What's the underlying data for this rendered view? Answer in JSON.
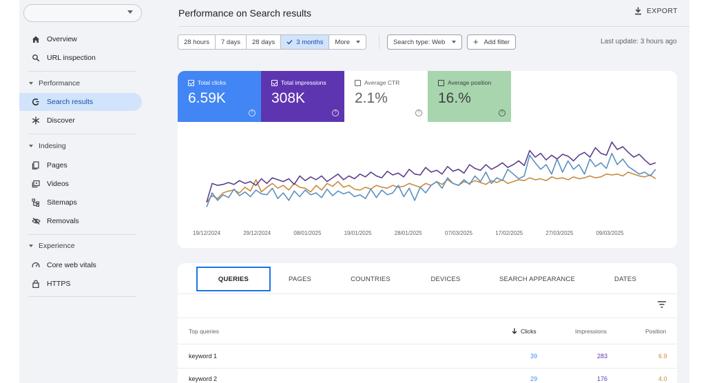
{
  "colors": {
    "clicks": "#4285f4",
    "impressions": "#5e35b1",
    "ctr": "#ffffff",
    "position": "#a8d5ad",
    "position_line": "#c88a3a",
    "clicks_line": "#5a8fc0",
    "impressions_line": "#5b3d8a"
  },
  "sidebar": {
    "property_select": "",
    "items": [
      {
        "label": "Overview",
        "icon": "home-icon"
      },
      {
        "label": "URL inspection",
        "icon": "search-icon"
      }
    ],
    "sections": [
      {
        "label": "Performance",
        "items": [
          {
            "label": "Search results",
            "icon": "google-g-icon",
            "active": true
          },
          {
            "label": "Discover",
            "icon": "asterisk-icon"
          }
        ]
      },
      {
        "label": "Indesing",
        "items": [
          {
            "label": "Pages",
            "icon": "pages-icon"
          },
          {
            "label": "Videos",
            "icon": "video-icon"
          },
          {
            "label": "Sitemaps",
            "icon": "sitemap-icon"
          },
          {
            "label": "Removals",
            "icon": "eye-off-icon"
          }
        ]
      },
      {
        "label": "Experience",
        "items": [
          {
            "label": "Core web vitals",
            "icon": "gauge-icon"
          },
          {
            "label": "HTTPS",
            "icon": "lock-icon"
          }
        ]
      }
    ]
  },
  "header": {
    "title": "Performance on Search results",
    "export_label": "EXPORT"
  },
  "filters": {
    "ranges": [
      "28 hours",
      "7 days",
      "28 days",
      "3 months",
      "More"
    ],
    "selected_range": "3 months",
    "search_type": "Search type: Web",
    "add_filter": "Add filter",
    "last_update": "Last update: 3 hours ago"
  },
  "metrics": {
    "clicks": {
      "label": "Total clicks",
      "value": "6.59K",
      "checked": true
    },
    "impressions": {
      "label": "Total impressions",
      "value": "308K",
      "checked": true
    },
    "ctr": {
      "label": "Average CTR",
      "value": "2.1%",
      "checked": false
    },
    "position": {
      "label": "Average position",
      "value": "16.%",
      "checked": false
    }
  },
  "chart_data": {
    "type": "line",
    "x_tick_labels": [
      "19/12/2024",
      "29/12/2024",
      "08/01/2025",
      "19/01/2025",
      "28/01/2025",
      "07/03/2025",
      "17/02/2025",
      "27/03/2025",
      "09/03/2025"
    ],
    "series": [
      {
        "key": "impressions",
        "values": [
          20,
          40,
          38,
          39,
          41,
          39,
          43,
          40,
          42,
          38,
          45,
          40,
          46,
          44,
          42,
          45,
          39,
          48,
          43,
          47,
          44,
          48,
          42,
          46,
          50,
          44,
          48,
          45,
          50,
          47,
          52,
          48,
          46,
          53,
          49,
          51,
          47,
          55,
          50,
          49,
          57,
          52,
          54,
          50,
          58,
          53,
          55,
          51,
          60,
          56,
          54,
          60,
          55,
          58,
          62,
          57,
          60,
          64,
          59,
          75,
          68,
          72,
          65,
          70,
          66,
          71,
          69,
          64,
          70,
          73,
          68,
          78,
          72,
          70,
          84,
          76,
          79,
          73,
          68,
          71,
          65,
          60,
          62
        ]
      },
      {
        "key": "clicks",
        "values": [
          15,
          30,
          22,
          28,
          25,
          34,
          27,
          31,
          26,
          33,
          29,
          28,
          35,
          24,
          30,
          22,
          32,
          26,
          33,
          28,
          30,
          25,
          34,
          27,
          32,
          29,
          31,
          26,
          28,
          24,
          34,
          25,
          33,
          28,
          30,
          38,
          26,
          35,
          22,
          36,
          30,
          38,
          42,
          35,
          46,
          40,
          38,
          44,
          39,
          48,
          42,
          52,
          40,
          46,
          43,
          55,
          50,
          45,
          48,
          70,
          62,
          55,
          60,
          50,
          66,
          52,
          64,
          55,
          60,
          50,
          66,
          58,
          62,
          56,
          72,
          60,
          66,
          58,
          54,
          50,
          52,
          48,
          55
        ]
      },
      {
        "key": "position",
        "values": [
          20,
          27,
          24,
          30,
          32,
          33,
          30,
          36,
          32,
          44,
          31,
          36,
          40,
          35,
          38,
          33,
          40,
          36,
          35,
          31,
          38,
          33,
          40,
          37,
          42,
          36,
          38,
          34,
          33,
          36,
          34,
          38,
          36,
          35,
          38,
          36,
          37,
          40,
          38,
          36,
          40,
          38,
          42,
          39,
          44,
          40,
          38,
          42,
          40,
          43,
          41,
          39,
          43,
          41,
          44,
          40,
          42,
          44,
          43,
          46,
          44,
          45,
          43,
          47,
          45,
          46,
          44,
          47,
          45,
          46,
          48,
          46,
          47,
          50,
          49,
          50,
          48,
          52,
          50,
          48,
          47,
          49,
          45
        ]
      }
    ],
    "grid": false,
    "legend": "none"
  },
  "table": {
    "tabs": [
      "QUERIES",
      "PAGES",
      "COUNTRIES",
      "DEVICES",
      "SEARCH APPEARANCE",
      "DATES"
    ],
    "active_tab": "QUERIES",
    "columns": {
      "query": "Top queries",
      "clicks": "Clicks",
      "impressions": "Impressions",
      "position": "Position"
    },
    "rows": [
      {
        "query": "keyword 1",
        "clicks": "39",
        "impressions": "283",
        "position": "6.9"
      },
      {
        "query": "keyword 2",
        "clicks": "29",
        "impressions": "176",
        "position": "4.0"
      }
    ]
  }
}
